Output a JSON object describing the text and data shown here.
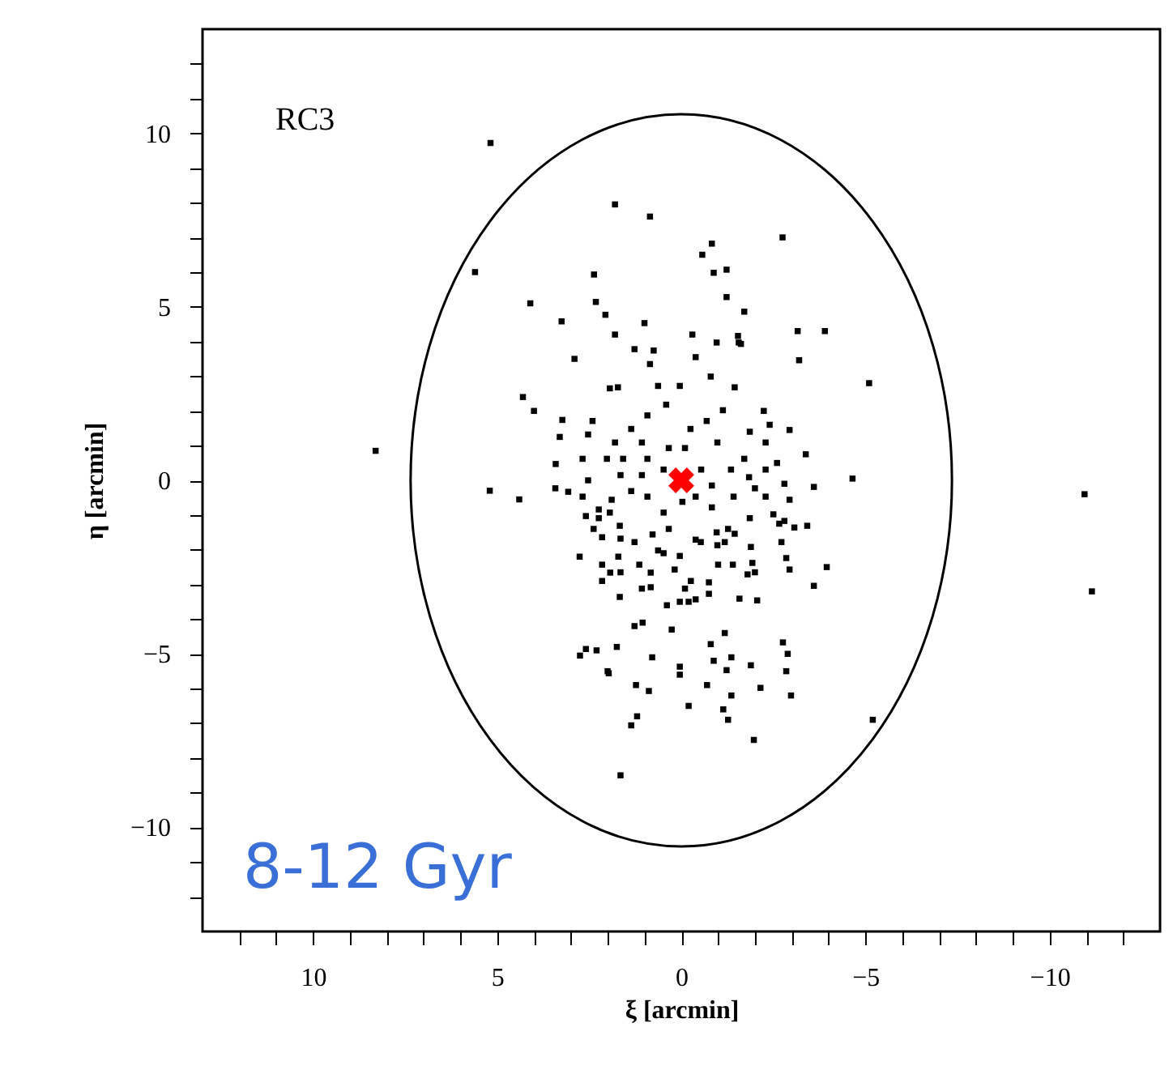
{
  "chart_data": {
    "type": "scatter",
    "xlabel": "ξ [arcmin]",
    "ylabel": "η [arcmin]",
    "xlim": [
      13,
      -13
    ],
    "ylim": [
      -13,
      13
    ],
    "xticks": [
      {
        "value": 12,
        "label": null
      },
      {
        "value": 11,
        "label": null
      },
      10,
      {
        "value": 9,
        "label": null
      },
      {
        "value": 8,
        "label": null
      },
      {
        "value": 7,
        "label": null
      },
      {
        "value": 6,
        "label": null
      },
      5,
      {
        "value": 4,
        "label": null
      },
      {
        "value": 3,
        "label": null
      },
      {
        "value": 2,
        "label": null
      },
      {
        "value": 1,
        "label": null
      },
      0,
      {
        "value": -1,
        "label": null
      },
      {
        "value": -2,
        "label": null
      },
      {
        "value": -3,
        "label": null
      },
      {
        "value": -4,
        "label": null
      },
      -5,
      {
        "value": -6,
        "label": null
      },
      {
        "value": -7,
        "label": null
      },
      {
        "value": -8,
        "label": null
      },
      {
        "value": -9,
        "label": null
      },
      -10,
      {
        "value": -11,
        "label": null
      },
      {
        "value": -12,
        "label": null
      }
    ],
    "yticks": [
      {
        "value": -12,
        "label": null
      },
      {
        "value": -11,
        "label": null
      },
      -10,
      {
        "value": -9,
        "label": null
      },
      {
        "value": -8,
        "label": null
      },
      {
        "value": -7,
        "label": null
      },
      {
        "value": -6,
        "label": null
      },
      -5,
      {
        "value": -4,
        "label": null
      },
      {
        "value": -3,
        "label": null
      },
      {
        "value": -2,
        "label": null
      },
      {
        "value": -1,
        "label": null
      },
      0,
      {
        "value": 1,
        "label": null
      },
      {
        "value": 2,
        "label": null
      },
      {
        "value": 3,
        "label": null
      },
      {
        "value": 4,
        "label": null
      },
      5,
      {
        "value": 6,
        "label": null
      },
      {
        "value": 7,
        "label": null
      },
      {
        "value": 8,
        "label": null
      },
      {
        "value": 9,
        "label": null
      },
      10,
      {
        "value": 11,
        "label": null
      },
      {
        "value": 12,
        "label": null
      }
    ],
    "grid": false,
    "annotations": [
      "RC3",
      "8-12 Gyr"
    ],
    "series": [
      {
        "marker": "square",
        "color": "#000000",
        "x": [
          5.18,
          5.6,
          8.3,
          5.2,
          4.4,
          1.8,
          0.85,
          -2.75,
          4.1,
          -3.9,
          -5.1,
          -4.65,
          -10.95,
          -11.15,
          -5.2,
          1.65,
          1.2,
          -2.85,
          -3.95,
          2.75,
          2.3,
          2.0,
          4.3,
          4.0,
          3.3,
          2.37,
          2.32,
          2.06,
          3.25,
          1.8,
          1.0,
          1.27,
          2.9,
          0.75,
          -0.83,
          -0.57,
          -0.88,
          -1.23,
          -1.23,
          -1.71,
          -3.16,
          -3.2,
          -0.96,
          -1.54,
          -1.62,
          -0.3,
          -3.38,
          -2.6,
          -2.94,
          -2.24,
          -2.4,
          -3.6,
          -3.42,
          -3.6,
          -2.94,
          -1.97,
          -2.98,
          -2.15,
          -2.76,
          -2.89,
          -1.89,
          -1.27,
          -1.14,
          -1.36,
          -0.7,
          -0.2,
          -1.23,
          -1.36,
          -0.88,
          -0.8,
          -1.18,
          -2.06,
          -1.58,
          -0.2,
          -0.75,
          -1.8,
          -1.93,
          -2.85,
          -2.72,
          -1.89,
          -1.45,
          -2.8,
          -3.07,
          -2.5,
          -2.94,
          -2.0,
          -2.8,
          -1.84,
          -0.96,
          -0.53,
          -1.0,
          -0.75,
          -0.26,
          -1.4,
          -1.18,
          3.42,
          3.07,
          2.76,
          2.59,
          1.75,
          1.97,
          1.23,
          0.88,
          1.36,
          0.79,
          0.26,
          0.04,
          0.04,
          1.27,
          1.05,
          2.15,
          1.93,
          1.67,
          0.83,
          0.39,
          0.04,
          2.15,
          1.14,
          0.83,
          1.71,
          2.15,
          2.59,
          2.24,
          1.67,
          1.27,
          0.48,
          0.18,
          1.89,
          3.23,
          3.41,
          2.68,
          2.53,
          2.41,
          1.94,
          1.72,
          0.85,
          0.63,
          0.04,
          -0.39,
          -0.8,
          -1.45,
          -1.56,
          -2.66,
          -2.0,
          2.38,
          1.65,
          0.63,
          0.04,
          -0.39,
          -0.98,
          -1.27,
          -1.86,
          -2.29,
          -1.35,
          -0.98,
          -0.69,
          -0.25,
          -1.13,
          -1.86,
          -2.29,
          0.41,
          0.92,
          1.36,
          1.8,
          2.02,
          1.65,
          1.36,
          0.92,
          0.48,
          -0.03,
          -0.39,
          -0.83,
          -0.54,
          -0.83,
          0.48,
          0.92,
          1.07,
          1.94,
          2.24,
          2.68,
          2.53,
          0.78,
          0.34,
          0.34,
          -0.1,
          1.07,
          1.58,
          -1.71,
          -2.29,
          -1.42,
          -0.1,
          -0.39,
          1.65,
          1.07
        ],
        "values": [
          9.72,
          6.0,
          0.85,
          -0.3,
          -0.55,
          7.95,
          7.6,
          7.0,
          5.1,
          4.3,
          2.8,
          0.05,
          -0.4,
          -3.2,
          -6.9,
          -8.5,
          -6.8,
          -5.5,
          -2.5,
          -5.05,
          -4.9,
          -5.5,
          2.4,
          2.0,
          1.25,
          5.93,
          5.14,
          4.77,
          4.58,
          4.2,
          4.53,
          3.78,
          3.5,
          3.74,
          6.82,
          6.5,
          5.98,
          6.07,
          5.28,
          4.86,
          4.3,
          3.46,
          3.97,
          4.16,
          3.93,
          4.2,
          0.75,
          0.5,
          1.45,
          2.0,
          1.6,
          -0.19,
          -1.31,
          -3.04,
          -2.57,
          -7.48,
          -6.2,
          -5.98,
          -4.67,
          -5.0,
          -5.33,
          -6.9,
          -6.6,
          -6.2,
          -5.9,
          -6.5,
          -5.47,
          -5.1,
          -5.2,
          -4.72,
          -4.4,
          -3.46,
          -3.41,
          -3.5,
          -3.27,
          -2.71,
          -2.38,
          -2.24,
          -1.78,
          -1.92,
          -1.54,
          -1.17,
          -1.36,
          -0.98,
          -0.56,
          -0.23,
          -0.1,
          0.09,
          -1.5,
          -1.78,
          -2.43,
          -2.94,
          -2.9,
          -2.43,
          -1.78,
          -0.23,
          -0.33,
          -2.2,
          -4.86,
          -4.8,
          -5.56,
          -5.9,
          -6.07,
          -7.06,
          -5.1,
          -4.3,
          -5.37,
          -5.6,
          -4.2,
          -4.1,
          -2.9,
          -2.66,
          -3.36,
          -3.08,
          -3.6,
          -3.5,
          -2.43,
          -2.43,
          -2.66,
          -2.2,
          -1.64,
          -1.03,
          -0.84,
          -1.31,
          -1.78,
          -2.1,
          -2.57,
          -0.56,
          1.74,
          0.47,
          0.62,
          1.32,
          1.71,
          2.65,
          2.68,
          3.35,
          2.72,
          2.72,
          3.55,
          2.99,
          2.68,
          3.97,
          -1.25,
          -2.65,
          -1.4,
          -1.68,
          -2.02,
          -2.18,
          -1.71,
          -1.87,
          -1.4,
          -1.09,
          -0.47,
          0.31,
          1.09,
          1.71,
          1.48,
          2.02,
          1.4,
          1.09,
          2.18,
          1.87,
          1.48,
          1.09,
          0.62,
          0.15,
          -0.31,
          -0.47,
          -0.93,
          -0.62,
          -0.47,
          -0.78,
          0.31,
          -0.15,
          0.31,
          0.62,
          0.15,
          -0.93,
          -1.09,
          -0.47,
          0.0,
          -1.56,
          -1.4,
          0.93,
          0.93,
          1.09,
          0.62,
          0.62,
          0.31,
          -0.47,
          -3.12,
          -3.43,
          -2.65,
          -3.12
        ]
      },
      {
        "marker": "cross",
        "color": "#ff0000",
        "x": [
          0
        ],
        "values": [
          0
        ]
      }
    ]
  }
}
